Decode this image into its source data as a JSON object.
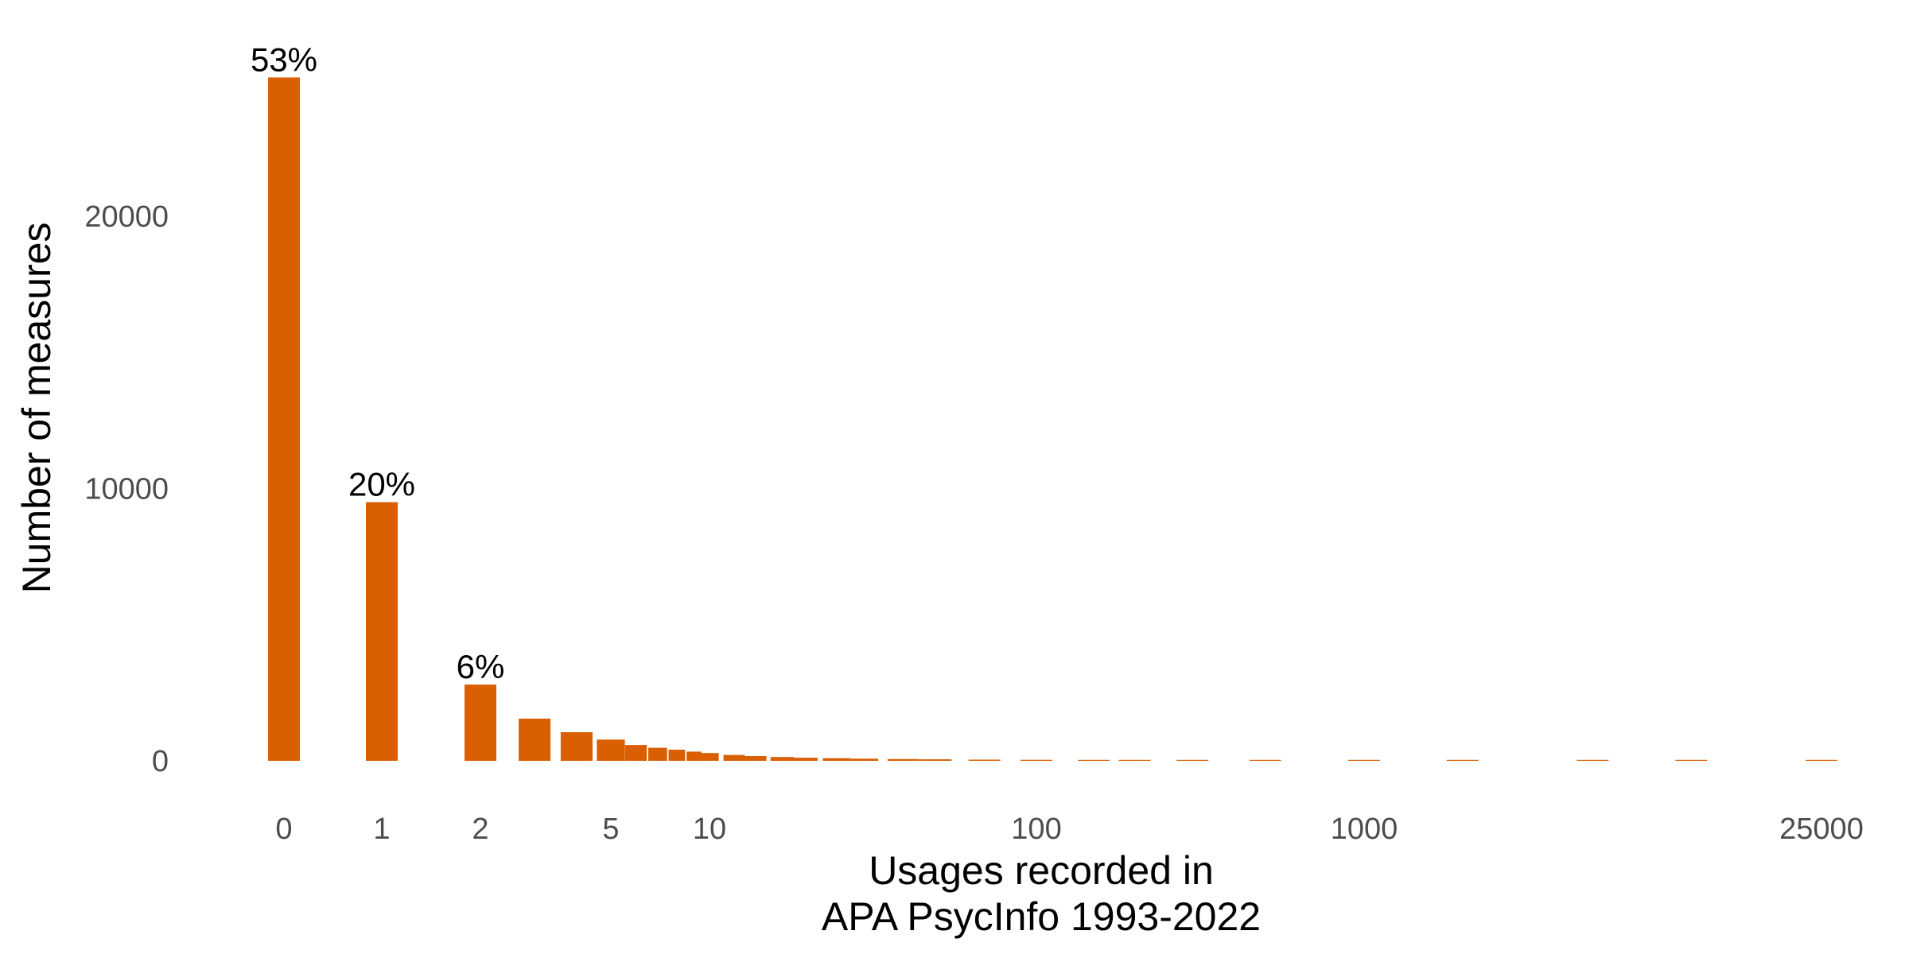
{
  "chart_data": {
    "type": "bar",
    "title": "",
    "xlabel_lines": [
      "Usages recorded in",
      "APA PsycInfo 1993-2022"
    ],
    "ylabel": "Number of measures",
    "x_scale": "pseudo-log",
    "x_ticks": [
      0,
      1,
      2,
      5,
      10,
      100,
      1000,
      25000
    ],
    "x_tick_labels": [
      "0",
      "1",
      "2",
      "5",
      "10",
      "100",
      "1000",
      "25000"
    ],
    "y_ticks": [
      0,
      10000,
      20000
    ],
    "y_tick_labels": [
      "0",
      "10000",
      "20000"
    ],
    "ylim": [
      0,
      25200
    ],
    "grid": false,
    "bar_color": "#d95f02",
    "bars": [
      {
        "x": 0,
        "value": 25100,
        "label": "53%"
      },
      {
        "x": 1,
        "value": 9500,
        "label": "20%"
      },
      {
        "x": 2,
        "value": 2800,
        "label": "6%"
      },
      {
        "x": 3,
        "value": 1550,
        "label": ""
      },
      {
        "x": 4,
        "value": 1050,
        "label": ""
      },
      {
        "x": 5,
        "value": 780,
        "label": ""
      },
      {
        "x": 6,
        "value": 580,
        "label": ""
      },
      {
        "x": 7,
        "value": 480,
        "label": ""
      },
      {
        "x": 8,
        "value": 410,
        "label": ""
      },
      {
        "x": 9,
        "value": 340,
        "label": ""
      },
      {
        "x": 10,
        "value": 285,
        "label": ""
      },
      {
        "x": 12,
        "value": 215,
        "label": ""
      },
      {
        "x": 14,
        "value": 175,
        "label": ""
      },
      {
        "x": 17,
        "value": 140,
        "label": ""
      },
      {
        "x": 20,
        "value": 115,
        "label": ""
      },
      {
        "x": 25,
        "value": 95,
        "label": ""
      },
      {
        "x": 30,
        "value": 80,
        "label": ""
      },
      {
        "x": 40,
        "value": 65,
        "label": ""
      },
      {
        "x": 50,
        "value": 55,
        "label": ""
      },
      {
        "x": 70,
        "value": 45,
        "label": ""
      },
      {
        "x": 100,
        "value": 38,
        "label": ""
      },
      {
        "x": 150,
        "value": 30,
        "label": ""
      },
      {
        "x": 200,
        "value": 25,
        "label": ""
      },
      {
        "x": 300,
        "value": 20,
        "label": ""
      },
      {
        "x": 500,
        "value": 15,
        "label": ""
      },
      {
        "x": 1000,
        "value": 10,
        "label": ""
      },
      {
        "x": 2000,
        "value": 6,
        "label": ""
      },
      {
        "x": 5000,
        "value": 4,
        "label": ""
      },
      {
        "x": 10000,
        "value": 2,
        "label": ""
      },
      {
        "x": 25000,
        "value": 1,
        "label": ""
      }
    ]
  }
}
